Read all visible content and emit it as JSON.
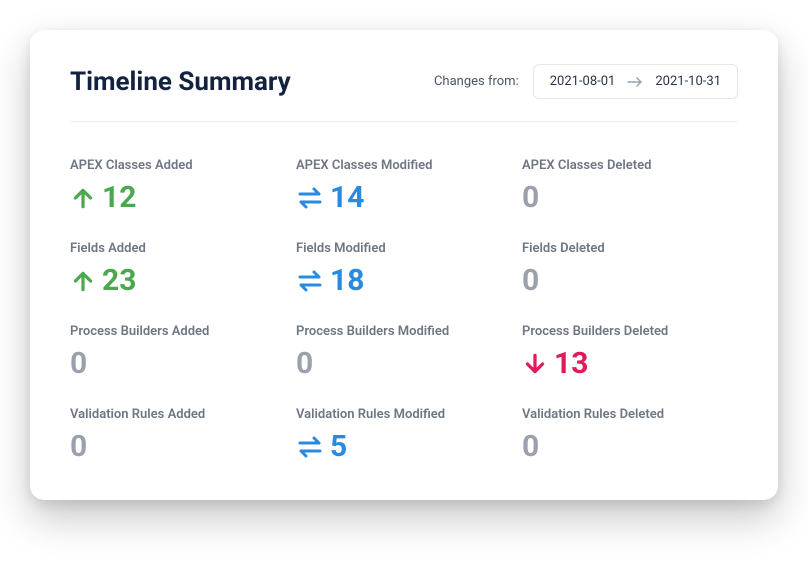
{
  "title": "Timeline Summary",
  "range": {
    "label": "Changes from:",
    "start": "2021-08-01",
    "end": "2021-10-31"
  },
  "colors": {
    "added": "#4aa94e",
    "modified": "#2a8ae0",
    "deleted": "#e2195b",
    "neutral": "#9ba1ac",
    "title": "#13233f",
    "label": "#6e7684"
  },
  "metrics": [
    {
      "label": "APEX Classes Added",
      "value": "12",
      "icon": "up",
      "color": "green"
    },
    {
      "label": "APEX Classes Modified",
      "value": "14",
      "icon": "swap",
      "color": "blue"
    },
    {
      "label": "APEX Classes Deleted",
      "value": "0",
      "icon": "",
      "color": "gray"
    },
    {
      "label": "Fields Added",
      "value": "23",
      "icon": "up",
      "color": "green"
    },
    {
      "label": "Fields Modified",
      "value": "18",
      "icon": "swap",
      "color": "blue"
    },
    {
      "label": "Fields Deleted",
      "value": "0",
      "icon": "",
      "color": "gray"
    },
    {
      "label": "Process Builders Added",
      "value": "0",
      "icon": "",
      "color": "gray"
    },
    {
      "label": "Process Builders Modified",
      "value": "0",
      "icon": "",
      "color": "gray"
    },
    {
      "label": "Process Builders Deleted",
      "value": "13",
      "icon": "down",
      "color": "pink"
    },
    {
      "label": "Validation Rules Added",
      "value": "0",
      "icon": "",
      "color": "gray"
    },
    {
      "label": "Validation Rules Modified",
      "value": "5",
      "icon": "swap",
      "color": "blue"
    },
    {
      "label": "Validation Rules Deleted",
      "value": "0",
      "icon": "",
      "color": "gray"
    }
  ]
}
